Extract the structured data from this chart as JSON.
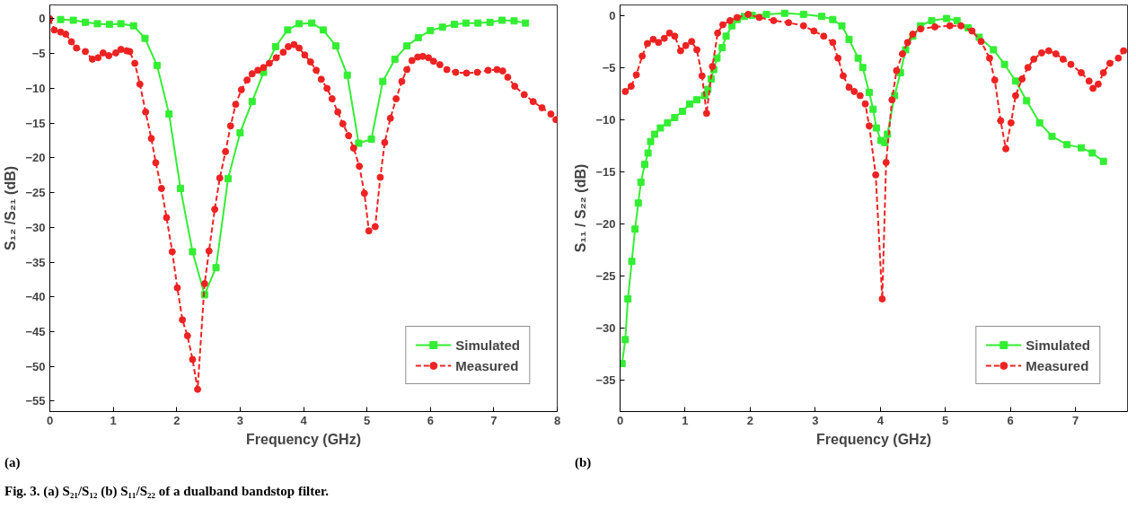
{
  "chart_data": [
    {
      "type": "line",
      "xlabel": "Frequency (GHz)",
      "ylabel": "S₁₂ /S₂₁ (dB)",
      "xlim": [
        0,
        8
      ],
      "ylim": [
        -56.5,
        2
      ],
      "xticks": [
        0,
        1,
        2,
        3,
        4,
        5,
        6,
        7,
        8
      ],
      "yticks": [
        0,
        -5,
        -10,
        -15,
        -20,
        -25,
        -30,
        -35,
        -40,
        -45,
        -50,
        -55
      ],
      "grid": false,
      "legend": "bottom right",
      "annotations": [
        "(a)",
        "Fig. 3. (a) S₂₁/S₁₂  (b) S₁₁/S₂₂ of a dualband bandstop filter."
      ],
      "series": [
        {
          "name": "Simulated",
          "color": "#33ee33",
          "marker": "square",
          "line_style": "solid",
          "x": [
            0.17,
            0.37,
            0.56,
            0.75,
            0.94,
            1.12,
            1.32,
            1.5,
            1.69,
            1.88,
            2.06,
            2.25,
            2.44,
            2.62,
            2.81,
            3.0,
            3.19,
            3.37,
            3.56,
            3.75,
            3.93,
            4.13,
            4.31,
            4.51,
            4.69,
            4.87,
            5.07,
            5.25,
            5.44,
            5.63,
            5.81,
            6.0,
            6.19,
            6.38,
            6.56,
            6.75,
            6.94,
            7.13,
            7.32,
            7.5
          ],
          "values": [
            -0.1,
            -0.2,
            -0.5,
            -0.7,
            -0.8,
            -0.7,
            -1.0,
            -2.8,
            -6.7,
            -13.7,
            -24.4,
            -33.5,
            -39.7,
            -35.8,
            -23.0,
            -16.4,
            -11.9,
            -7.7,
            -4.0,
            -1.6,
            -0.7,
            -0.6,
            -1.6,
            -3.9,
            -8.1,
            -17.9,
            -17.3,
            -9.0,
            -5.8,
            -3.9,
            -2.7,
            -1.7,
            -1.2,
            -0.8,
            -0.6,
            -0.6,
            -0.5,
            -0.2,
            -0.3,
            -0.6
          ]
        },
        {
          "name": "Measured",
          "color": "#ee2222",
          "marker": "circle",
          "line_style": "dashed",
          "x": [
            0,
            0.07,
            0.17,
            0.25,
            0.34,
            0.42,
            0.56,
            0.67,
            0.76,
            0.84,
            0.93,
            1.04,
            1.12,
            1.21,
            1.26,
            1.34,
            1.42,
            1.51,
            1.6,
            1.67,
            1.76,
            1.84,
            1.93,
            2.01,
            2.09,
            2.17,
            2.25,
            2.33,
            2.44,
            2.51,
            2.6,
            2.68,
            2.77,
            2.85,
            2.93,
            3.02,
            3.11,
            3.19,
            3.28,
            3.37,
            3.46,
            3.57,
            3.68,
            3.76,
            3.85,
            3.93,
            4.02,
            4.11,
            4.2,
            4.28,
            4.37,
            4.45,
            4.54,
            4.62,
            4.71,
            4.79,
            4.88,
            4.96,
            5.03,
            5.13,
            5.21,
            5.28,
            5.37,
            5.46,
            5.55,
            5.63,
            5.71,
            5.8,
            5.88,
            5.97,
            6.05,
            6.15,
            6.26,
            6.4,
            6.57,
            6.74,
            6.91,
            7.05,
            7.14,
            7.22,
            7.33,
            7.48,
            7.62,
            7.76,
            7.9,
            7.98
          ],
          "values": [
            0,
            -1.6,
            -1.9,
            -2.2,
            -3.3,
            -4.2,
            -4.7,
            -5.8,
            -5.6,
            -4.9,
            -5.3,
            -4.9,
            -4.4,
            -4.6,
            -4.7,
            -6.4,
            -9.4,
            -13.4,
            -17.2,
            -20.7,
            -24.4,
            -28.6,
            -33.5,
            -38.7,
            -43.3,
            -45.6,
            -49.0,
            -53.3,
            -38.1,
            -33.4,
            -27.4,
            -22.9,
            -19.1,
            -15.4,
            -12.3,
            -10.2,
            -8.8,
            -7.9,
            -7.4,
            -7.0,
            -6.4,
            -5.6,
            -4.8,
            -4.0,
            -3.7,
            -4.2,
            -5.2,
            -6.2,
            -7.4,
            -8.7,
            -10.0,
            -11.5,
            -13.4,
            -15.1,
            -16.8,
            -18.6,
            -21.2,
            -25.1,
            -30.5,
            -29.9,
            -22.8,
            -17.8,
            -14.3,
            -11.5,
            -9.0,
            -7.3,
            -6.0,
            -5.5,
            -5.4,
            -5.6,
            -6.1,
            -6.6,
            -7.3,
            -7.7,
            -7.8,
            -7.7,
            -7.4,
            -7.3,
            -7.5,
            -8.4,
            -9.7,
            -10.9,
            -11.9,
            -12.8,
            -13.7,
            -14.5
          ]
        }
      ]
    },
    {
      "type": "line",
      "xlabel": "Frequency (GHz)",
      "ylabel": "S₁₁ / S₂₂ (dB)",
      "xlim": [
        0,
        7.8
      ],
      "ylim": [
        -38,
        1
      ],
      "xticks": [
        0,
        1,
        2,
        3,
        4,
        5,
        6,
        7
      ],
      "yticks": [
        0,
        -5,
        -10,
        -15,
        -20,
        -25,
        -30,
        -35
      ],
      "grid": false,
      "legend": "bottom right",
      "annotations": [
        "(b)"
      ],
      "series": [
        {
          "name": "Simulated",
          "color": "#33ee33",
          "marker": "square",
          "line_style": "solid",
          "x": [
            0.03,
            0.08,
            0.12,
            0.18,
            0.23,
            0.28,
            0.32,
            0.38,
            0.43,
            0.47,
            0.53,
            0.62,
            0.73,
            0.84,
            0.96,
            1.07,
            1.18,
            1.3,
            1.35,
            1.4,
            1.44,
            1.49,
            1.57,
            1.63,
            1.72,
            1.8,
            1.91,
            2.03,
            2.25,
            2.53,
            2.82,
            3.1,
            3.27,
            3.41,
            3.52,
            3.66,
            3.73,
            3.83,
            3.89,
            3.94,
            4.01,
            4.07,
            4.11,
            4.22,
            4.31,
            4.39,
            4.5,
            4.62,
            4.79,
            5.02,
            5.18,
            5.35,
            5.52,
            5.74,
            5.91,
            6.08,
            6.25,
            6.45,
            6.64,
            6.87,
            7.09,
            7.26,
            7.43
          ],
          "values": [
            -33.4,
            -31.1,
            -27.2,
            -23.6,
            -20.5,
            -18.0,
            -16.0,
            -14.3,
            -13.2,
            -12.1,
            -11.4,
            -10.8,
            -10.3,
            -9.8,
            -9.2,
            -8.5,
            -8.1,
            -7.7,
            -7.1,
            -6.1,
            -5.2,
            -4.1,
            -3.1,
            -2.0,
            -1.0,
            -0.4,
            -0.1,
            0,
            0.1,
            0.2,
            0.1,
            -0.1,
            -0.4,
            -1.0,
            -2.3,
            -4.1,
            -5.0,
            -7.4,
            -9.0,
            -10.8,
            -12.0,
            -12.2,
            -11.4,
            -7.7,
            -5.5,
            -3.3,
            -2.0,
            -1.0,
            -0.5,
            -0.3,
            -0.5,
            -1.2,
            -2.1,
            -3.3,
            -4.7,
            -6.3,
            -8.2,
            -10.3,
            -11.6,
            -12.4,
            -12.7,
            -13.2,
            -14.0
          ]
        },
        {
          "name": "Measured",
          "color": "#ee2222",
          "marker": "circle",
          "line_style": "dashed",
          "x": [
            0.08,
            0.17,
            0.25,
            0.34,
            0.42,
            0.51,
            0.59,
            0.68,
            0.76,
            0.84,
            0.93,
            1.01,
            1.1,
            1.18,
            1.26,
            1.33,
            1.42,
            1.5,
            1.58,
            1.69,
            1.8,
            1.97,
            2.14,
            2.36,
            2.59,
            2.82,
            2.98,
            3.13,
            3.27,
            3.35,
            3.43,
            3.52,
            3.6,
            3.69,
            3.77,
            3.83,
            3.93,
            4.03,
            4.09,
            4.18,
            4.25,
            4.34,
            4.42,
            4.5,
            4.62,
            4.84,
            5.07,
            5.24,
            5.41,
            5.55,
            5.68,
            5.76,
            5.85,
            5.93,
            6.01,
            6.08,
            6.18,
            6.27,
            6.36,
            6.48,
            6.59,
            6.7,
            6.81,
            6.93,
            7.09,
            7.21,
            7.27,
            7.35,
            7.43,
            7.53,
            7.66,
            7.74
          ],
          "values": [
            -7.3,
            -6.8,
            -5.7,
            -3.9,
            -2.7,
            -2.3,
            -2.6,
            -2.2,
            -1.7,
            -2.0,
            -3.4,
            -2.9,
            -2.5,
            -3.3,
            -5.8,
            -9.4,
            -4.9,
            -1.7,
            -0.9,
            -0.5,
            -0.2,
            0.1,
            -0.2,
            -0.5,
            -0.7,
            -1.0,
            -1.5,
            -2.0,
            -2.6,
            -4.1,
            -5.8,
            -6.9,
            -7.3,
            -7.7,
            -8.5,
            -10.6,
            -15.3,
            -27.2,
            -14.1,
            -8.1,
            -5.3,
            -3.7,
            -2.6,
            -1.8,
            -1.3,
            -1.1,
            -1.0,
            -1.0,
            -1.5,
            -2.5,
            -4.1,
            -6.2,
            -10.1,
            -12.8,
            -10.3,
            -7.7,
            -6.1,
            -5.0,
            -4.2,
            -3.6,
            -3.4,
            -3.7,
            -4.2,
            -4.7,
            -5.5,
            -6.3,
            -7.0,
            -6.6,
            -5.5,
            -4.6,
            -4.1,
            -3.4
          ]
        }
      ]
    }
  ]
}
